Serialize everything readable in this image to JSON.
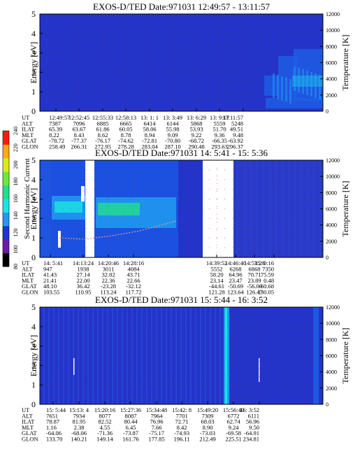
{
  "colors": {
    "background_level": "#2434c8",
    "grid_dot": "#a03020",
    "trace": "#e0a0a0",
    "tick_dot": "#e01010"
  },
  "colorbar": {
    "label": "Second Harmonic Current",
    "range": [
      80,
      240
    ],
    "ticks": [
      "80",
      "100",
      "120",
      "140",
      "160",
      "180",
      "200",
      "220",
      "240"
    ],
    "colors": [
      "#000000",
      "#6a1aa8",
      "#1c34d8",
      "#1f9cf0",
      "#19e6e0",
      "#22e08a",
      "#6ee83a",
      "#d8ec18",
      "#ffa818",
      "#ff1a10"
    ]
  },
  "chart_data": [
    {
      "type": "heatmap",
      "title": "EXOS-D/TED   Date:971031   12:49:57 - 13:11:57",
      "ylabel": "Energy [eV]",
      "ylabel2": "Temperature [K]",
      "ylim": [
        0,
        5
      ],
      "y2lim": [
        0,
        12000
      ],
      "yticks": [
        "0",
        "1",
        "2",
        "3",
        "4",
        "5"
      ],
      "y2ticks": [
        "0",
        "2000",
        "4000",
        "6000",
        "8000",
        "10000",
        "12000"
      ],
      "grid": true,
      "rows": [
        {
          "label": "UT",
          "values": [
            "12:49:57",
            "12:52:45",
            "12:55:33",
            "12:58:13",
            "13: 1: 1",
            "13: 3:49",
            "13: 6:29",
            "13: 9:17",
            "13:11:57"
          ]
        },
        {
          "label": "ALT",
          "values": [
            "7387",
            "7096",
            "6885",
            "6665",
            "6414",
            "6144",
            "5868",
            "5559",
            "5248"
          ]
        },
        {
          "label": "ILAT",
          "values": [
            "65.39",
            "63.67",
            "61.86",
            "60.05",
            "58.06",
            "55.98",
            "53.93",
            "51.70",
            "49.51"
          ]
        },
        {
          "label": "MLT",
          "values": [
            "8.22",
            "8.43",
            "8.62",
            "8.78",
            "8.94",
            "9.09",
            "9.22",
            "9.36",
            "9.48"
          ]
        },
        {
          "label": "GLAT",
          "values": [
            "-78.72",
            "-77.37",
            "-76.17",
            "-74.62",
            "-72.81",
            "-70.80",
            "-68.72",
            "-66.35",
            "-63.92"
          ]
        },
        {
          "label": "GLON",
          "values": [
            "258.49",
            "266.31",
            "272.95",
            "278.28",
            "283.04",
            "287.10",
            "290.48",
            "293.63",
            "296.37"
          ]
        }
      ]
    },
    {
      "type": "heatmap",
      "title": "EXOS-D/TED   Date:971031   14: 5:41 - 15: 5:36",
      "ylabel": "Energy [eV]",
      "ylabel2": "Temperature [K]",
      "ylim": [
        0,
        5
      ],
      "y2lim": [
        0,
        12000
      ],
      "yticks": [
        "0",
        "1",
        "2",
        "3",
        "4",
        "5"
      ],
      "y2ticks": [
        "0",
        "2000",
        "4000",
        "6000",
        "8000",
        "10000",
        "12000"
      ],
      "grid": true,
      "rows": [
        {
          "label": "UT",
          "values": [
            "14: 5:41",
            "14:13:24",
            "14:20:46",
            "14:28:16",
            "14:39:52",
            "14:46:40",
            "14:53:28",
            "15: 0:16"
          ]
        },
        {
          "label": "ALT",
          "values": [
            "947",
            "1938",
            "3011",
            "4084",
            "5552",
            "6268",
            "6868",
            "7350"
          ]
        },
        {
          "label": "ILAT",
          "values": [
            "41.43",
            "27.14",
            "32.82",
            "43.71",
            "58.20",
            "64.96",
            "70.71",
            "75.59"
          ]
        },
        {
          "label": "MLT",
          "values": [
            "21.41",
            "22.00",
            "22.36",
            "22.66",
            "23.14",
            "23.47",
            "23.89",
            "0.48"
          ]
        },
        {
          "label": "GLAT",
          "values": [
            "48.10",
            "36.42",
            "-23.28",
            "-32.12",
            "-44.61",
            "-50.69",
            "-56.00",
            "-60.68"
          ]
        },
        {
          "label": "GLON",
          "values": [
            "103.55",
            "110.95",
            "113.24",
            "117.72",
            "121.28",
            "123.64",
            "126.47",
            "130.05"
          ]
        }
      ]
    },
    {
      "type": "heatmap",
      "title": "EXOS-D/TED   Date:971031   15: 5:44 - 16: 3:52",
      "ylabel": "Energy [eV]",
      "ylabel2": "Temperature [K]",
      "ylim": [
        0,
        5
      ],
      "y2lim": [
        0,
        12000
      ],
      "yticks": [
        "0",
        "1",
        "2",
        "3",
        "4",
        "5"
      ],
      "y2ticks": [
        "0",
        "2000",
        "4000",
        "6000",
        "8000",
        "10000",
        "12000"
      ],
      "grid": true,
      "rows": [
        {
          "label": "UT",
          "values": [
            "15: 5:44",
            "15:13: 4",
            "15:20:16",
            "15:27:36",
            "15:34:48",
            "15:42: 8",
            "15:49:20",
            "15:56:40",
            "16: 3:52"
          ]
        },
        {
          "label": "ALT",
          "values": [
            "7651",
            "7934",
            "8077",
            "8087",
            "7964",
            "7701",
            "7309",
            "6772",
            "6111"
          ]
        },
        {
          "label": "ILAT",
          "values": [
            "78.87",
            "81.95",
            "82.52",
            "80.44",
            "76.96",
            "72.71",
            "68.03",
            "62.74",
            "56.96"
          ]
        },
        {
          "label": "MLT",
          "values": [
            "1.16",
            "2.38",
            "4.55",
            "6.45",
            "7.66",
            "8.42",
            "8.90",
            "9.24",
            "9.50"
          ]
        },
        {
          "label": "GLAT",
          "values": [
            "-64.06",
            "-68.06",
            "-71.36",
            "-73.87",
            "-75.17",
            "-74.93",
            "-73.03",
            "-69.58",
            "-64.91"
          ]
        },
        {
          "label": "GLON",
          "values": [
            "133.70",
            "140.21",
            "149.14",
            "161.76",
            "177.85",
            "196.11",
            "212.49",
            "225.51",
            "234.81"
          ]
        }
      ]
    }
  ]
}
